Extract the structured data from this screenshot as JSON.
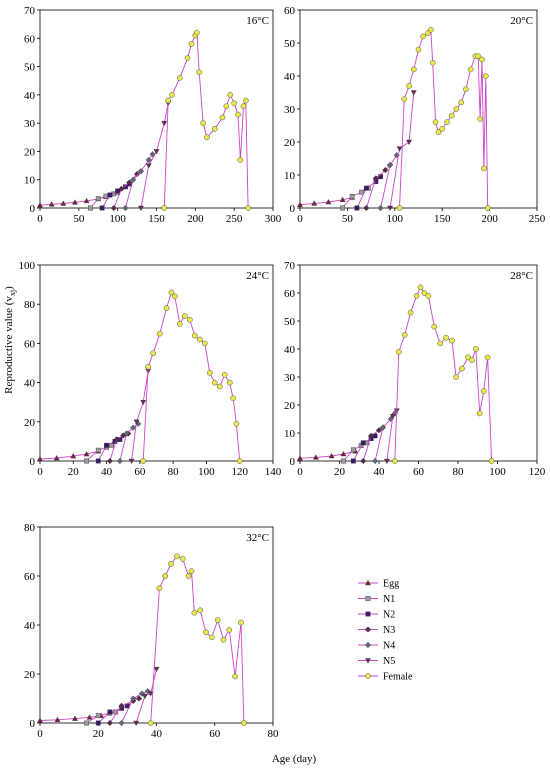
{
  "figure": {
    "ylabel": "Reproductive value (v",
    "ylabel_sub": "xj",
    "ylabel_close": ")",
    "xlabel": "Age (day)"
  },
  "colors": {
    "Egg": "#7a1f3d",
    "N1": "#9a9a9a",
    "N2": "#3a1a6a",
    "N3": "#5a2a4a",
    "N4": "#5e6a78",
    "N5": "#6a2a5a",
    "Female": "#e8e84a",
    "line": "#cc44cc"
  },
  "legend": [
    "Egg",
    "N1",
    "N2",
    "N3",
    "N4",
    "N5",
    "Female"
  ],
  "chart_data": [
    {
      "type": "line",
      "panel_label": "16°C",
      "xlim": [
        0,
        300
      ],
      "xticks": [
        0,
        50,
        100,
        150,
        200,
        250,
        300
      ],
      "ylim": [
        0,
        70
      ],
      "yticks": [
        0,
        10,
        20,
        30,
        40,
        50,
        60,
        70
      ],
      "series": [
        {
          "name": "Egg",
          "x": [
            0,
            15,
            30,
            45,
            60,
            75,
            85
          ],
          "y": [
            1,
            1.3,
            1.6,
            2,
            2.5,
            3.2,
            4
          ]
        },
        {
          "name": "N1",
          "x": [
            65,
            75,
            85,
            95,
            100
          ],
          "y": [
            0,
            3.3,
            4.2,
            5,
            5.5
          ]
        },
        {
          "name": "N2",
          "x": [
            80,
            90,
            100,
            110,
            115
          ],
          "y": [
            0,
            4.6,
            6,
            7.5,
            8.5
          ]
        },
        {
          "name": "N3",
          "x": [
            95,
            105,
            115,
            125,
            130
          ],
          "y": [
            0,
            6.8,
            9,
            12,
            13
          ]
        },
        {
          "name": "N4",
          "x": [
            110,
            120,
            130,
            140,
            145
          ],
          "y": [
            0,
            10,
            13,
            17,
            19
          ]
        },
        {
          "name": "N5",
          "x": [
            130,
            140,
            150,
            160,
            165
          ],
          "y": [
            0,
            15,
            20,
            30,
            37
          ]
        },
        {
          "name": "Female",
          "x": [
            160,
            165,
            170,
            180,
            190,
            195,
            200,
            202,
            205,
            210,
            215,
            225,
            235,
            240,
            245,
            250,
            255,
            258,
            262,
            265,
            268
          ],
          "y": [
            0,
            38,
            40,
            46,
            53,
            58,
            61,
            62,
            48,
            30,
            25,
            28,
            32,
            36,
            40,
            37,
            33,
            17,
            36,
            38,
            0
          ]
        }
      ]
    },
    {
      "type": "line",
      "panel_label": "20°C",
      "xlim": [
        0,
        250
      ],
      "xticks": [
        0,
        50,
        100,
        150,
        200,
        250
      ],
      "ylim": [
        0,
        60
      ],
      "yticks": [
        0,
        10,
        20,
        30,
        40,
        50,
        60
      ],
      "series": [
        {
          "name": "Egg",
          "x": [
            0,
            15,
            30,
            45,
            55
          ],
          "y": [
            1,
            1.4,
            1.8,
            2.5,
            3.2
          ]
        },
        {
          "name": "N1",
          "x": [
            45,
            55,
            65,
            72
          ],
          "y": [
            0,
            3.5,
            4.8,
            6
          ]
        },
        {
          "name": "N2",
          "x": [
            60,
            70,
            80,
            85
          ],
          "y": [
            0,
            6,
            8,
            9.5
          ]
        },
        {
          "name": "N3",
          "x": [
            70,
            80,
            90,
            95
          ],
          "y": [
            0,
            9,
            11.5,
            13
          ]
        },
        {
          "name": "N4",
          "x": [
            85,
            95,
            102
          ],
          "y": [
            0,
            13,
            16
          ]
        },
        {
          "name": "N5",
          "x": [
            95,
            105,
            115,
            120
          ],
          "y": [
            0,
            18,
            20,
            35
          ]
        },
        {
          "name": "Female",
          "x": [
            105,
            110,
            115,
            120,
            125,
            130,
            135,
            138,
            140,
            143,
            146,
            150,
            155,
            160,
            165,
            170,
            175,
            180,
            185,
            188,
            190,
            192,
            194,
            196,
            198
          ],
          "y": [
            0,
            33,
            37,
            42,
            48,
            52,
            53,
            54,
            44,
            26,
            23,
            24,
            26,
            28,
            30,
            32,
            36,
            42,
            46,
            46,
            27,
            45,
            12,
            40,
            0
          ]
        }
      ]
    },
    {
      "type": "line",
      "panel_label": "24°C",
      "xlim": [
        0,
        140
      ],
      "xticks": [
        0,
        20,
        40,
        60,
        80,
        100,
        120,
        140
      ],
      "ylim": [
        0,
        100
      ],
      "yticks": [
        0,
        20,
        40,
        60,
        80,
        100
      ],
      "series": [
        {
          "name": "Egg",
          "x": [
            0,
            10,
            20,
            28,
            35
          ],
          "y": [
            1,
            1.5,
            2.5,
            3.5,
            5
          ]
        },
        {
          "name": "N1",
          "x": [
            28,
            35,
            40,
            43
          ],
          "y": [
            0,
            5.5,
            7,
            8
          ]
        },
        {
          "name": "N2",
          "x": [
            35,
            40,
            45,
            48
          ],
          "y": [
            0,
            8,
            10,
            11
          ]
        },
        {
          "name": "N3",
          "x": [
            42,
            46,
            50,
            53
          ],
          "y": [
            0,
            11,
            13,
            14
          ]
        },
        {
          "name": "N4",
          "x": [
            48,
            52,
            56,
            59
          ],
          "y": [
            0,
            14,
            17,
            19
          ]
        },
        {
          "name": "N5",
          "x": [
            55,
            58,
            62,
            65
          ],
          "y": [
            0,
            20,
            30,
            46
          ]
        },
        {
          "name": "Female",
          "x": [
            62,
            65,
            68,
            72,
            76,
            79,
            81,
            84,
            87,
            90,
            93,
            96,
            99,
            102,
            105,
            108,
            111,
            114,
            116,
            118,
            120
          ],
          "y": [
            0,
            48,
            55,
            65,
            78,
            86,
            84,
            70,
            74,
            72,
            64,
            62,
            60,
            45,
            40,
            38,
            44,
            40,
            32,
            19,
            0
          ]
        }
      ]
    },
    {
      "type": "line",
      "panel_label": "28°C",
      "xlim": [
        0,
        120
      ],
      "xticks": [
        0,
        20,
        40,
        60,
        80,
        100,
        120
      ],
      "ylim": [
        0,
        70
      ],
      "yticks": [
        0,
        10,
        20,
        30,
        40,
        50,
        60,
        70
      ],
      "series": [
        {
          "name": "Egg",
          "x": [
            0,
            8,
            16,
            22,
            28
          ],
          "y": [
            1,
            1.3,
            1.8,
            2.5,
            3.5
          ]
        },
        {
          "name": "N1",
          "x": [
            22,
            27,
            31,
            34
          ],
          "y": [
            0,
            4,
            5.5,
            6.5
          ]
        },
        {
          "name": "N2",
          "x": [
            27,
            32,
            36,
            38
          ],
          "y": [
            0,
            6.5,
            8,
            9
          ]
        },
        {
          "name": "N3",
          "x": [
            32,
            36,
            40,
            42
          ],
          "y": [
            0,
            9,
            11,
            12
          ]
        },
        {
          "name": "N4",
          "x": [
            38,
            42,
            46,
            48
          ],
          "y": [
            0,
            12,
            15,
            17
          ]
        },
        {
          "name": "N5",
          "x": [
            44,
            47,
            49
          ],
          "y": [
            0,
            16,
            18
          ]
        },
        {
          "name": "Female",
          "x": [
            48,
            50,
            53,
            56,
            59,
            61,
            63,
            65,
            68,
            71,
            74,
            77,
            79,
            82,
            85,
            87,
            89,
            91,
            93,
            95,
            97
          ],
          "y": [
            0,
            39,
            45,
            53,
            59,
            62,
            60,
            59,
            48,
            42,
            44,
            43,
            30,
            33,
            37,
            36,
            40,
            17,
            25,
            37,
            0
          ]
        }
      ]
    },
    {
      "type": "line",
      "panel_label": "32°C",
      "xlim": [
        0,
        80
      ],
      "xticks": [
        0,
        20,
        40,
        60,
        80
      ],
      "ylim": [
        0,
        80
      ],
      "yticks": [
        0,
        20,
        40,
        60,
        80
      ],
      "series": [
        {
          "name": "Egg",
          "x": [
            0,
            6,
            12,
            17,
            21
          ],
          "y": [
            1,
            1.3,
            1.8,
            2.3,
            3
          ]
        },
        {
          "name": "N1",
          "x": [
            16,
            20,
            24,
            26
          ],
          "y": [
            0,
            3,
            4,
            4.5
          ]
        },
        {
          "name": "N2",
          "x": [
            20,
            24,
            28,
            30
          ],
          "y": [
            0,
            4.5,
            6,
            7
          ]
        },
        {
          "name": "N3",
          "x": [
            24,
            28,
            32,
            34
          ],
          "y": [
            0,
            7,
            9,
            10
          ]
        },
        {
          "name": "N4",
          "x": [
            28,
            32,
            35,
            37
          ],
          "y": [
            0,
            10,
            12,
            13
          ]
        },
        {
          "name": "N5",
          "x": [
            33,
            36,
            38,
            40
          ],
          "y": [
            0,
            11,
            12,
            22
          ]
        },
        {
          "name": "Female",
          "x": [
            38,
            41,
            43,
            45,
            47,
            49,
            51,
            52,
            53,
            55,
            57,
            59,
            61,
            63,
            65,
            67,
            69,
            70
          ],
          "y": [
            0,
            55,
            60,
            65,
            68,
            67,
            60,
            62,
            45,
            46,
            37,
            35,
            42,
            34,
            38,
            19,
            41,
            0
          ]
        }
      ]
    }
  ]
}
